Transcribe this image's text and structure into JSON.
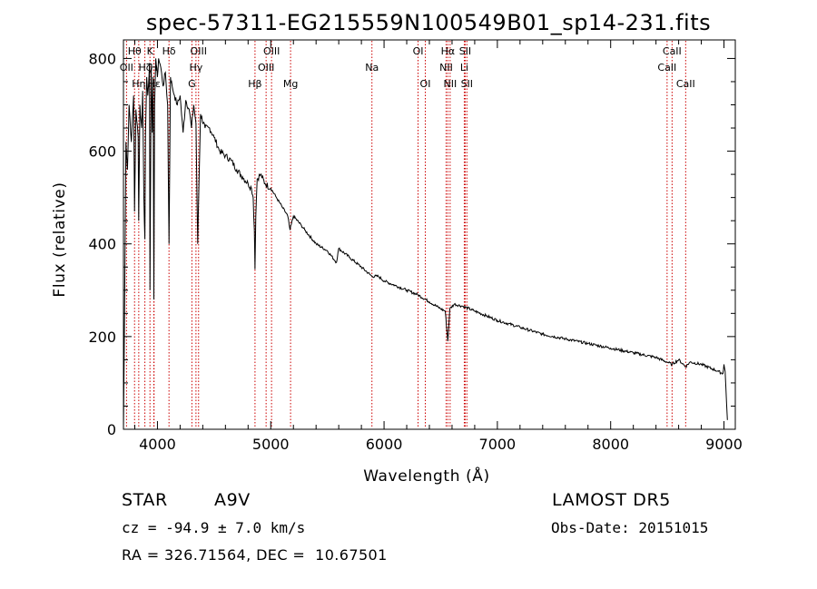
{
  "colors": {
    "spectrum": "#000000",
    "line_marker": "#cc0000",
    "axes": "#000000"
  },
  "chart_data": {
    "type": "line",
    "title": "spec-57311-EG215559N100549B01_sp14-231.fits",
    "xlabel": "Wavelength (Å)",
    "ylabel": "Flux (relative)",
    "xlim": [
      3700,
      9100
    ],
    "ylim": [
      0,
      840
    ],
    "x_ticks": [
      4000,
      5000,
      6000,
      7000,
      8000,
      9000
    ],
    "y_ticks": [
      0,
      200,
      400,
      600,
      800
    ],
    "grid": false,
    "series": [
      {
        "x": [
          3700,
          3710,
          3722,
          3735,
          3750,
          3770,
          3790,
          3798,
          3810,
          3830,
          3835,
          3845,
          3860,
          3870,
          3880,
          3889,
          3895,
          3905,
          3915,
          3930,
          3934,
          3945,
          3955,
          3962,
          3968,
          3975,
          3985,
          4000,
          4010,
          4030,
          4050,
          4070,
          4090,
          4102,
          4115,
          4130,
          4150,
          4175,
          4200,
          4226,
          4250,
          4280,
          4300,
          4320,
          4340,
          4355,
          4380,
          4420,
          4460,
          4500,
          4550,
          4600,
          4650,
          4700,
          4750,
          4800,
          4830,
          4845,
          4855,
          4861,
          4868,
          4880,
          4910,
          4950,
          5000,
          5050,
          5100,
          5150,
          5170,
          5200,
          5270,
          5300,
          5400,
          5500,
          5580,
          5600,
          5700,
          5800,
          5893,
          5950,
          6000,
          6100,
          6200,
          6300,
          6400,
          6500,
          6540,
          6563,
          6580,
          6620,
          6700,
          6800,
          6900,
          7000,
          7200,
          7400,
          7600,
          7800,
          8000,
          8200,
          8400,
          8498,
          8542,
          8600,
          8662,
          8700,
          8800,
          8900,
          8950,
          8990,
          9000,
          9010,
          9030
        ],
        "y": [
          0,
          250,
          620,
          560,
          700,
          620,
          720,
          470,
          690,
          630,
          450,
          700,
          650,
          730,
          500,
          410,
          640,
          760,
          720,
          790,
          300,
          780,
          640,
          760,
          280,
          700,
          800,
          760,
          800,
          780,
          740,
          770,
          700,
          400,
          760,
          740,
          720,
          700,
          720,
          640,
          710,
          690,
          650,
          700,
          660,
          400,
          680,
          650,
          650,
          630,
          600,
          590,
          580,
          560,
          545,
          530,
          520,
          500,
          430,
          345,
          460,
          540,
          550,
          530,
          520,
          500,
          480,
          460,
          430,
          460,
          440,
          430,
          400,
          385,
          360,
          390,
          370,
          350,
          330,
          330,
          320,
          310,
          300,
          290,
          275,
          260,
          255,
          190,
          260,
          270,
          265,
          255,
          245,
          235,
          220,
          205,
          195,
          185,
          175,
          165,
          155,
          145,
          140,
          150,
          135,
          145,
          140,
          130,
          125,
          120,
          140,
          125,
          20
        ]
      }
    ],
    "line_markers": [
      {
        "name": "Hθ",
        "wavelength": 3798,
        "row": 0
      },
      {
        "name": "OII",
        "wavelength": 3727,
        "row": 1
      },
      {
        "name": "Hη",
        "wavelength": 3835,
        "row": 2
      },
      {
        "name": "Hζ",
        "wavelength": 3889,
        "row": 1
      },
      {
        "name": "K",
        "wavelength": 3934,
        "row": 0
      },
      {
        "name": "H",
        "wavelength": 3968,
        "row": 1
      },
      {
        "name": "Hε",
        "wavelength": 3970,
        "row": 2
      },
      {
        "name": "Hδ",
        "wavelength": 4102,
        "row": 0
      },
      {
        "name": "G",
        "wavelength": 4304,
        "row": 2
      },
      {
        "name": "Hγ",
        "wavelength": 4340,
        "row": 1
      },
      {
        "name": "OIII",
        "wavelength": 4363,
        "row": 0
      },
      {
        "name": "Hβ",
        "wavelength": 4861,
        "row": 2
      },
      {
        "name": "OIII",
        "wavelength": 4959,
        "row": 1
      },
      {
        "name": "OIII",
        "wavelength": 5007,
        "row": 0
      },
      {
        "name": "Mg",
        "wavelength": 5175,
        "row": 2
      },
      {
        "name": "Na",
        "wavelength": 5893,
        "row": 1
      },
      {
        "name": "OI",
        "wavelength": 6300,
        "row": 0
      },
      {
        "name": "OI",
        "wavelength": 6364,
        "row": 2
      },
      {
        "name": "NII",
        "wavelength": 6548,
        "row": 1
      },
      {
        "name": "Hα",
        "wavelength": 6563,
        "row": 0
      },
      {
        "name": "NII",
        "wavelength": 6583,
        "row": 2
      },
      {
        "name": "Li",
        "wavelength": 6708,
        "row": 1
      },
      {
        "name": "SII",
        "wavelength": 6716,
        "row": 0
      },
      {
        "name": "SII",
        "wavelength": 6731,
        "row": 2
      },
      {
        "name": "CaII",
        "wavelength": 8498,
        "row": 1
      },
      {
        "name": "CaII",
        "wavelength": 8542,
        "row": 0
      },
      {
        "name": "CaII",
        "wavelength": 8662,
        "row": 2
      }
    ]
  },
  "info": {
    "star_label": "STAR",
    "spectral_type": "A9V",
    "survey": "LAMOST DR5",
    "cz": "cz = -94.9 ± 7.0 km/s",
    "obs_date": "Obs-Date: 20151015",
    "coords": "RA = 326.71564, DEC =  10.67501"
  }
}
